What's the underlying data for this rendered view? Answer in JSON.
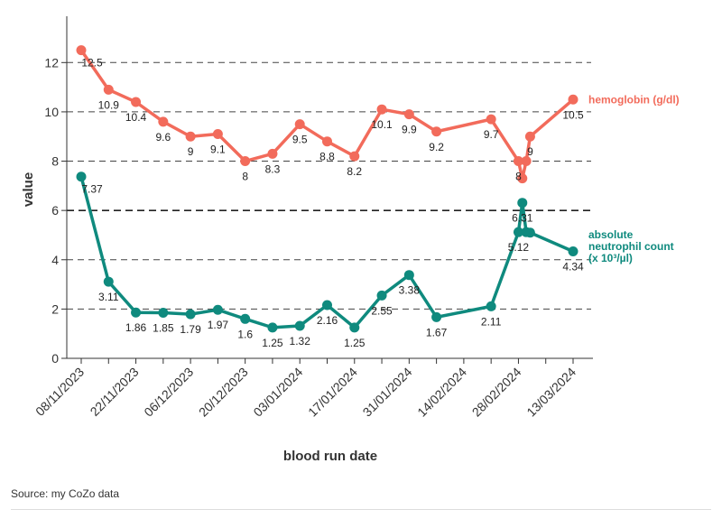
{
  "source_text": "Source: my CoZo data",
  "chart_data": {
    "type": "line",
    "xlabel": "blood run date",
    "ylabel": "value",
    "ylim": [
      0,
      13
    ],
    "y_ticks": [
      0,
      2,
      4,
      6,
      8,
      10,
      12
    ],
    "x_ticks": [
      "08/11/2023",
      "22/11/2023",
      "06/12/2023",
      "20/12/2023",
      "03/01/2024",
      "17/01/2024",
      "31/01/2024",
      "14/02/2024",
      "28/02/2024",
      "13/03/2024"
    ],
    "reference_line": 6,
    "grid": "horizontal dashed",
    "series": [
      {
        "name": "hemoglobin (g/dl)",
        "color": "#f26b5b",
        "points": [
          {
            "date": "2023-11-08",
            "value": 12.5,
            "label": "12.5"
          },
          {
            "date": "2023-11-15",
            "value": 10.9,
            "label": "10.9"
          },
          {
            "date": "2023-11-22",
            "value": 10.4,
            "label": "10.4"
          },
          {
            "date": "2023-11-29",
            "value": 9.6,
            "label": "9.6"
          },
          {
            "date": "2023-12-06",
            "value": 9.0,
            "label": "9"
          },
          {
            "date": "2023-12-13",
            "value": 9.1,
            "label": "9.1"
          },
          {
            "date": "2023-12-20",
            "value": 8.0,
            "label": "8"
          },
          {
            "date": "2023-12-27",
            "value": 8.3,
            "label": "8.3"
          },
          {
            "date": "2024-01-03",
            "value": 9.5,
            "label": "9.5"
          },
          {
            "date": "2024-01-10",
            "value": 8.8,
            "label": "8.8"
          },
          {
            "date": "2024-01-17",
            "value": 8.2,
            "label": "8.2"
          },
          {
            "date": "2024-01-24",
            "value": 10.1,
            "label": "10.1"
          },
          {
            "date": "2024-01-31",
            "value": 9.9,
            "label": "9.9"
          },
          {
            "date": "2024-02-07",
            "value": 9.2,
            "label": "9.2"
          },
          {
            "date": "2024-02-21",
            "value": 9.7,
            "label": "9.7"
          },
          {
            "date": "2024-02-28",
            "value": 8.0,
            "label": "8"
          },
          {
            "date": "2024-02-29",
            "value": 7.3,
            "label": ""
          },
          {
            "date": "2024-03-01",
            "value": 8.0,
            "label": ""
          },
          {
            "date": "2024-03-02",
            "value": 9.0,
            "label": "9"
          },
          {
            "date": "2024-03-13",
            "value": 10.5,
            "label": "10.5"
          }
        ]
      },
      {
        "name": "absolute neutrophil count (x 10³/µl)",
        "legend_lines": [
          "absolute",
          "neutrophil count",
          "(x 10³/µl)"
        ],
        "color": "#0f8a7e",
        "points": [
          {
            "date": "2023-11-08",
            "value": 7.37,
            "label": "7.37"
          },
          {
            "date": "2023-11-15",
            "value": 3.11,
            "label": "3.11"
          },
          {
            "date": "2023-11-22",
            "value": 1.86,
            "label": "1.86"
          },
          {
            "date": "2023-11-29",
            "value": 1.85,
            "label": "1.85"
          },
          {
            "date": "2023-12-06",
            "value": 1.79,
            "label": "1.79"
          },
          {
            "date": "2023-12-13",
            "value": 1.97,
            "label": "1.97"
          },
          {
            "date": "2023-12-20",
            "value": 1.6,
            "label": "1.6"
          },
          {
            "date": "2023-12-27",
            "value": 1.25,
            "label": "1.25"
          },
          {
            "date": "2024-01-03",
            "value": 1.32,
            "label": "1.32"
          },
          {
            "date": "2024-01-10",
            "value": 2.16,
            "label": "2.16"
          },
          {
            "date": "2024-01-17",
            "value": 1.25,
            "label": "1.25"
          },
          {
            "date": "2024-01-24",
            "value": 2.55,
            "label": "2.55"
          },
          {
            "date": "2024-01-31",
            "value": 3.38,
            "label": "3.38"
          },
          {
            "date": "2024-02-07",
            "value": 1.67,
            "label": "1.67"
          },
          {
            "date": "2024-02-21",
            "value": 2.11,
            "label": "2.11"
          },
          {
            "date": "2024-02-28",
            "value": 5.12,
            "label": "5.12"
          },
          {
            "date": "2024-02-29",
            "value": 6.31,
            "label": "6.31"
          },
          {
            "date": "2024-03-01",
            "value": 5.12,
            "label": ""
          },
          {
            "date": "2024-03-02",
            "value": 5.1,
            "label": ""
          },
          {
            "date": "2024-03-13",
            "value": 4.34,
            "label": "4.34"
          }
        ]
      }
    ]
  }
}
